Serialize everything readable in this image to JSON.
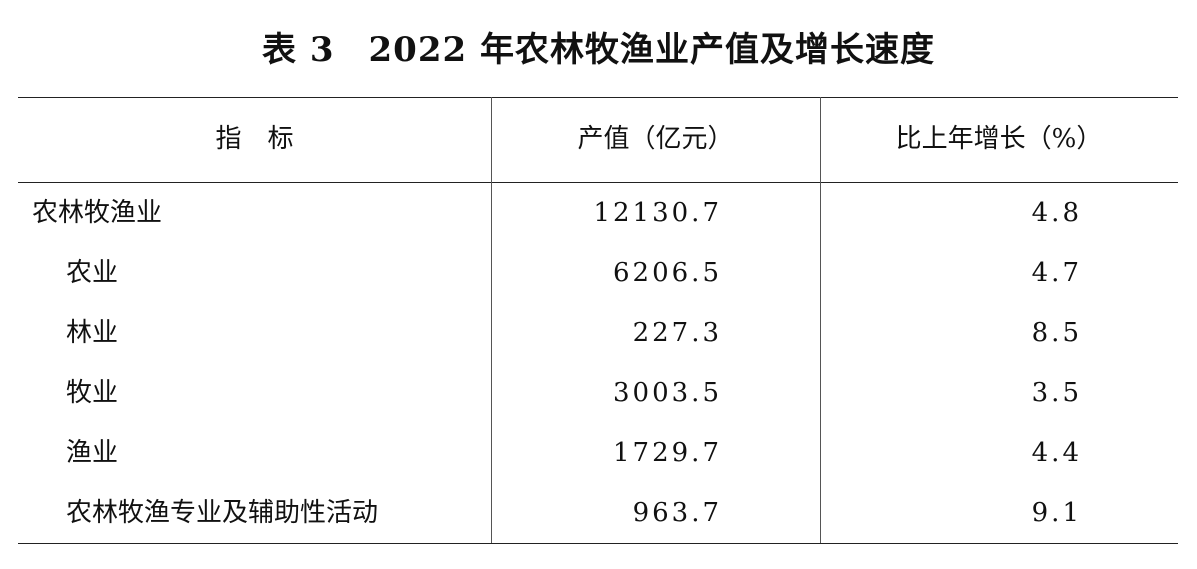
{
  "title": {
    "table_no": "表 3",
    "text": "2022 年农林牧渔业产值及增长速度"
  },
  "columns": [
    "指　标",
    "产值（亿元）",
    "比上年增长（%）"
  ],
  "rows": [
    {
      "label": "农林牧渔业",
      "value": "12130.7",
      "growth": "4.8",
      "indent": false
    },
    {
      "label": "农业",
      "value": "6206.5",
      "growth": "4.7",
      "indent": true
    },
    {
      "label": "林业",
      "value": "227.3",
      "growth": "8.5",
      "indent": true
    },
    {
      "label": "牧业",
      "value": "3003.5",
      "growth": "3.5",
      "indent": true
    },
    {
      "label": "渔业",
      "value": "1729.7",
      "growth": "4.4",
      "indent": true
    },
    {
      "label": "农林牧渔专业及辅助性活动",
      "value": "963.7",
      "growth": "9.1",
      "indent": true
    }
  ]
}
